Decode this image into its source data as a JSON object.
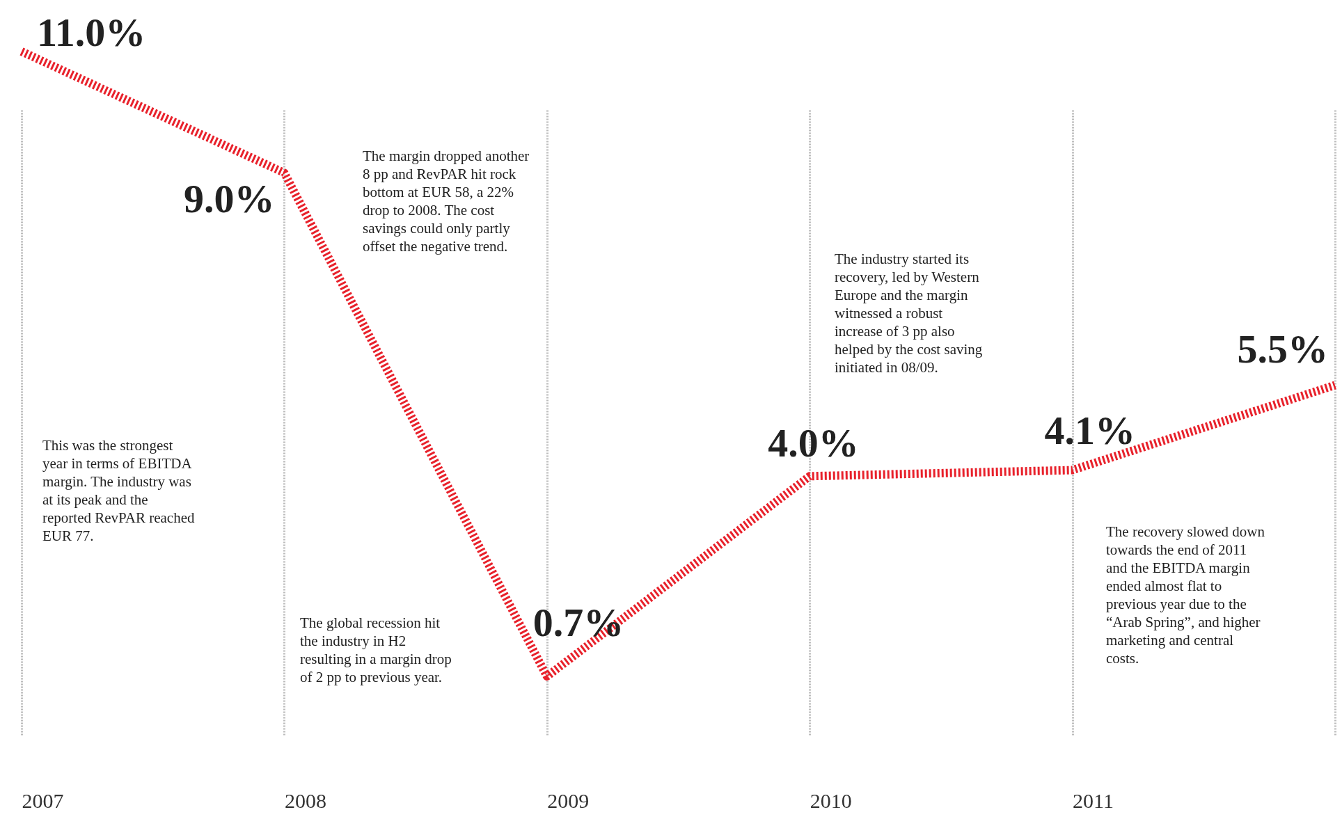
{
  "chart_data": {
    "type": "line",
    "categories": [
      "2007",
      "2008",
      "2009",
      "2010",
      "2011",
      null
    ],
    "series": [
      {
        "color": "#e8212b",
        "values": [
          11.0,
          9.0,
          0.7,
          4.0,
          4.1,
          5.5
        ],
        "value_labels": [
          "11.0%",
          "9.0%",
          "0.7%",
          "4.0%",
          "4.1%",
          "5.5%"
        ]
      }
    ],
    "line_style": "dashed",
    "marker": "none",
    "grid": "x",
    "tick_labels": "x",
    "annotations": [
      "This was the strongest year in terms of EBITDA margin. The industry was at its peak and the reported RevPAR reached EUR 77.",
      "The global recession hit the industry in H2 resulting in a margin drop of 2 pp to previous year.",
      "The margin dropped another 8 pp and RevPAR hit rock bottom at EUR 58, a 22% drop to 2008. The cost savings could only partly offset the negative trend.",
      "The industry started its recovery, led by Western Europe and the margin witnessed a robust increase of 3 pp also helped by the cost saving initiated in 08/09.",
      "The recovery slowed down towards the end of 2011 and the EBITDA margin ended almost flat to previous year due to the “Arab Spring”, and higher marketing and central costs."
    ]
  }
}
